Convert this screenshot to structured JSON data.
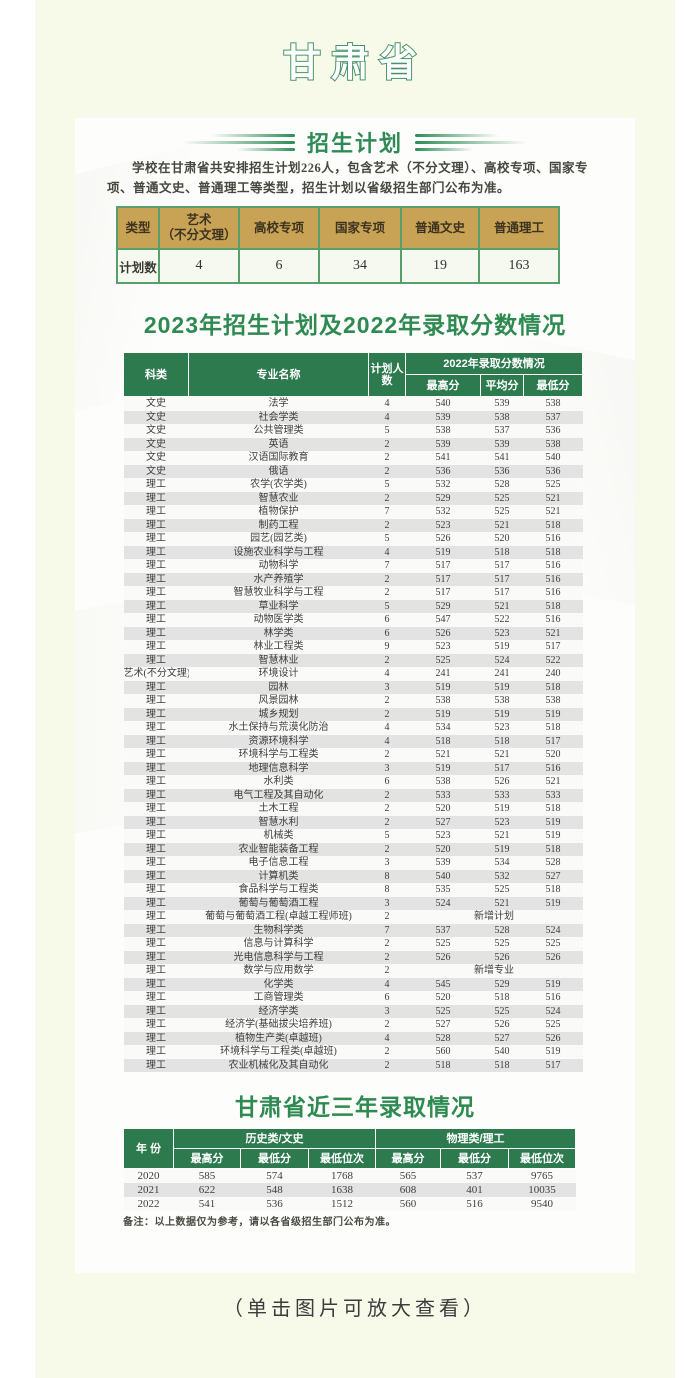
{
  "colors": {
    "page_background": "#f8fae9",
    "card_background": "#fdfdfb",
    "header_green": "#2d7a4f",
    "title_green": "#2f8a52",
    "plan_header_tan": "#c9a355",
    "table_border_green": "#57a06e",
    "stripe_gray": "#e3e3e3"
  },
  "header": {
    "province": "甘肃省"
  },
  "enroll_plan": {
    "section_title": "招生计划",
    "intro": "学校在甘肃省共安排招生计划226人，包含艺术（不分文理）、高校专项、国家专项、普通文史、普通理工等类型，招生计划以省级招生部门公布为准。",
    "table": {
      "corner_header": "类型",
      "col_headers": [
        "艺术\n（不分文理）",
        "高校专项",
        "国家专项",
        "普通文史",
        "普通理工"
      ],
      "row_label": "计划数",
      "values": [
        "4",
        "6",
        "34",
        "19",
        "163"
      ]
    }
  },
  "scores_2022": {
    "section_title": "2023年招生计划及2022年录取分数情况",
    "headers": {
      "category": "科类",
      "major": "专业名称",
      "plan": "计划人数",
      "group": "2022年录取分数情况",
      "max": "最高分",
      "avg": "平均分",
      "min": "最低分"
    },
    "rows": [
      [
        "文史",
        "法学",
        "4",
        "540",
        "539",
        "538"
      ],
      [
        "文史",
        "社会学类",
        "4",
        "539",
        "538",
        "537"
      ],
      [
        "文史",
        "公共管理类",
        "5",
        "538",
        "537",
        "536"
      ],
      [
        "文史",
        "英语",
        "2",
        "539",
        "539",
        "538"
      ],
      [
        "文史",
        "汉语国际教育",
        "2",
        "541",
        "541",
        "540"
      ],
      [
        "文史",
        "俄语",
        "2",
        "536",
        "536",
        "536"
      ],
      [
        "理工",
        "农学(农学类)",
        "5",
        "532",
        "528",
        "525"
      ],
      [
        "理工",
        "智慧农业",
        "2",
        "529",
        "525",
        "521"
      ],
      [
        "理工",
        "植物保护",
        "7",
        "532",
        "525",
        "521"
      ],
      [
        "理工",
        "制药工程",
        "2",
        "523",
        "521",
        "518"
      ],
      [
        "理工",
        "园艺(园艺类)",
        "5",
        "526",
        "520",
        "516"
      ],
      [
        "理工",
        "设施农业科学与工程",
        "4",
        "519",
        "518",
        "518"
      ],
      [
        "理工",
        "动物科学",
        "7",
        "517",
        "517",
        "516"
      ],
      [
        "理工",
        "水产养殖学",
        "2",
        "517",
        "517",
        "516"
      ],
      [
        "理工",
        "智慧牧业科学与工程",
        "2",
        "517",
        "517",
        "516"
      ],
      [
        "理工",
        "草业科学",
        "5",
        "529",
        "521",
        "518"
      ],
      [
        "理工",
        "动物医学类",
        "6",
        "547",
        "522",
        "516"
      ],
      [
        "理工",
        "林学类",
        "6",
        "526",
        "523",
        "521"
      ],
      [
        "理工",
        "林业工程类",
        "9",
        "523",
        "519",
        "517"
      ],
      [
        "理工",
        "智慧林业",
        "2",
        "525",
        "524",
        "522"
      ],
      [
        "艺术(不分文理)",
        "环境设计",
        "4",
        "241",
        "241",
        "240"
      ],
      [
        "理工",
        "园林",
        "3",
        "519",
        "519",
        "518"
      ],
      [
        "理工",
        "风景园林",
        "2",
        "538",
        "538",
        "538"
      ],
      [
        "理工",
        "城乡规划",
        "2",
        "519",
        "519",
        "519"
      ],
      [
        "理工",
        "水土保持与荒漠化防治",
        "4",
        "534",
        "523",
        "518"
      ],
      [
        "理工",
        "资源环境科学",
        "4",
        "518",
        "518",
        "517"
      ],
      [
        "理工",
        "环境科学与工程类",
        "2",
        "521",
        "521",
        "520"
      ],
      [
        "理工",
        "地理信息科学",
        "3",
        "519",
        "517",
        "516"
      ],
      [
        "理工",
        "水利类",
        "6",
        "538",
        "526",
        "521"
      ],
      [
        "理工",
        "电气工程及其自动化",
        "2",
        "533",
        "533",
        "533"
      ],
      [
        "理工",
        "土木工程",
        "2",
        "520",
        "519",
        "518"
      ],
      [
        "理工",
        "智慧水利",
        "2",
        "527",
        "523",
        "519"
      ],
      [
        "理工",
        "机械类",
        "5",
        "523",
        "521",
        "519"
      ],
      [
        "理工",
        "农业智能装备工程",
        "2",
        "520",
        "519",
        "518"
      ],
      [
        "理工",
        "电子信息工程",
        "3",
        "539",
        "534",
        "528"
      ],
      [
        "理工",
        "计算机类",
        "8",
        "540",
        "532",
        "527"
      ],
      [
        "理工",
        "食品科学与工程类",
        "8",
        "535",
        "525",
        "518"
      ],
      [
        "理工",
        "葡萄与葡萄酒工程",
        "3",
        "524",
        "521",
        "519"
      ],
      [
        "理工",
        "葡萄与葡萄酒工程(卓越工程师班)",
        "2",
        "新增计划"
      ],
      [
        "理工",
        "生物科学类",
        "7",
        "537",
        "528",
        "524"
      ],
      [
        "理工",
        "信息与计算科学",
        "2",
        "525",
        "525",
        "525"
      ],
      [
        "理工",
        "光电信息科学与工程",
        "2",
        "526",
        "526",
        "526"
      ],
      [
        "理工",
        "数学与应用数学",
        "2",
        "新增专业"
      ],
      [
        "理工",
        "化学类",
        "4",
        "545",
        "529",
        "519"
      ],
      [
        "理工",
        "工商管理类",
        "6",
        "520",
        "518",
        "516"
      ],
      [
        "理工",
        "经济学类",
        "3",
        "525",
        "525",
        "524"
      ],
      [
        "理工",
        "经济学(基础拔尖培养班)",
        "2",
        "527",
        "526",
        "525"
      ],
      [
        "理工",
        "植物生产类(卓越班)",
        "4",
        "528",
        "527",
        "526"
      ],
      [
        "理工",
        "环境科学与工程类(卓越班)",
        "2",
        "560",
        "540",
        "519"
      ],
      [
        "理工",
        "农业机械化及其自动化",
        "2",
        "518",
        "518",
        "517"
      ]
    ]
  },
  "three_year": {
    "section_title": "甘肃省近三年录取情况",
    "headers": {
      "year": "年 份",
      "hist": "历史类/文史",
      "phys": "物理类/理工",
      "max": "最高分",
      "min": "最低分",
      "rank": "最低位次"
    },
    "rows": [
      [
        "2020",
        "585",
        "574",
        "1768",
        "565",
        "537",
        "9765"
      ],
      [
        "2021",
        "622",
        "548",
        "1638",
        "608",
        "401",
        "10035"
      ],
      [
        "2022",
        "541",
        "536",
        "1512",
        "560",
        "516",
        "9540"
      ]
    ],
    "note": "备注：以上数据仅为参考，请以各省级招生部门公布为准。"
  },
  "footer": {
    "caption": "（单击图片可放大查看）"
  }
}
